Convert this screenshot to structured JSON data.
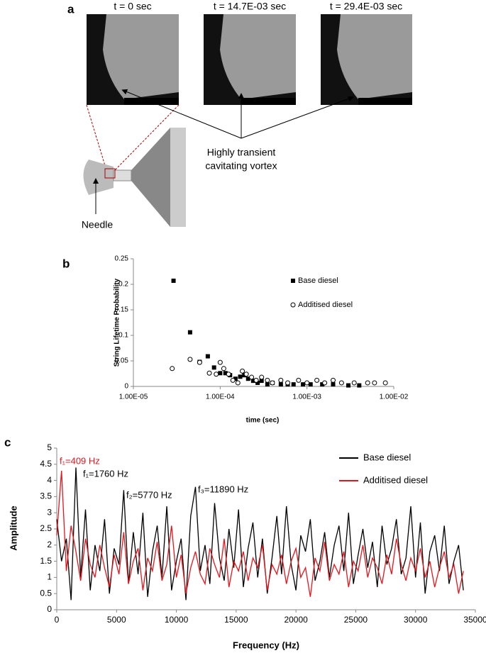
{
  "panel_a": {
    "label": "a",
    "frame_titles": [
      "t = 0 sec",
      "t = 14.7E-03 sec",
      "t = 29.4E-03 sec"
    ],
    "annotation_lines": [
      "Highly transient",
      "cavitating vortex"
    ],
    "needle_label": "Needle"
  },
  "chart_data": [
    {
      "type": "scatter",
      "panel_label": "b",
      "y_label": "String Lifetime Probability",
      "x_label": "time (sec)",
      "xscale": "log",
      "xlim": [
        1e-05,
        0.01
      ],
      "xticks": [
        {
          "value": 1e-05,
          "label": "1.00E-05"
        },
        {
          "value": 0.0001,
          "label": "1.00E-04"
        },
        {
          "value": 0.001,
          "label": "1.00E-03"
        },
        {
          "value": 0.01,
          "label": "1.00E-02"
        }
      ],
      "ylim": [
        0,
        0.25
      ],
      "yticks": [
        0,
        0.05,
        0.1,
        0.15,
        0.2,
        0.25
      ],
      "series": [
        {
          "name": "Base diesel",
          "marker": "square",
          "color": "#000000",
          "x": [
            2.9e-05,
            4.5e-05,
            5.8e-05,
            7.2e-05,
            8.5e-05,
            0.0001,
            0.000115,
            0.00013,
            0.00015,
            0.00017,
            0.00019,
            0.00021,
            0.00024,
            0.00027,
            0.0003,
            0.00035,
            0.0004,
            0.0005,
            0.0006,
            0.0007,
            0.0009,
            0.0011,
            0.0015,
            0.002,
            0.003,
            0.004
          ],
          "values": [
            0.207,
            0.106,
            0.048,
            0.059,
            0.037,
            0.026,
            0.026,
            0.022,
            0.015,
            0.019,
            0.022,
            0.015,
            0.011,
            0.007,
            0.011,
            0.004,
            0.007,
            0.004,
            0.004,
            0.004,
            0.004,
            0.004,
            0.004,
            0.004,
            0.002,
            0.002
          ]
        },
        {
          "name": "Additised diesel",
          "marker": "circle",
          "color": "#000000",
          "x": [
            2.8e-05,
            4.5e-05,
            5.8e-05,
            7.5e-05,
            9e-05,
            0.0001,
            0.00011,
            0.000125,
            0.00014,
            0.00016,
            0.00018,
            0.0002,
            0.00023,
            0.00026,
            0.0003,
            0.00035,
            0.0004,
            0.0005,
            0.0006,
            0.0008,
            0.001,
            0.0013,
            0.0016,
            0.002,
            0.0025,
            0.0035,
            0.005,
            0.006,
            0.008
          ],
          "values": [
            0.035,
            0.053,
            0.047,
            0.026,
            0.024,
            0.047,
            0.035,
            0.024,
            0.012,
            0.007,
            0.03,
            0.024,
            0.018,
            0.012,
            0.018,
            0.012,
            0.007,
            0.012,
            0.007,
            0.012,
            0.007,
            0.012,
            0.007,
            0.012,
            0.007,
            0.007,
            0.007,
            0.007,
            0.007
          ]
        }
      ]
    },
    {
      "type": "line",
      "panel_label": "c",
      "y_label": "Amplitude",
      "x_label": "Frequency (Hz)",
      "xlim": [
        0,
        35000
      ],
      "xticks": [
        0,
        5000,
        10000,
        15000,
        20000,
        25000,
        30000,
        35000
      ],
      "ylim": [
        0,
        5
      ],
      "yticks": [
        0,
        0.5,
        1,
        1.5,
        2,
        2.5,
        3,
        3.5,
        4,
        4.5,
        5
      ],
      "x": [
        0,
        400,
        800,
        1200,
        1600,
        2000,
        2400,
        2800,
        3200,
        3600,
        4000,
        4400,
        4800,
        5200,
        5600,
        6000,
        6400,
        6800,
        7200,
        7600,
        8000,
        8400,
        8800,
        9200,
        9600,
        10000,
        10400,
        10800,
        11200,
        11600,
        12000,
        12400,
        12800,
        13200,
        13600,
        14000,
        14400,
        14800,
        15200,
        15600,
        16000,
        16400,
        16800,
        17200,
        17600,
        18000,
        18400,
        18800,
        19200,
        19600,
        20000,
        20400,
        20800,
        21200,
        21600,
        22000,
        22400,
        22800,
        23200,
        23600,
        24000,
        24400,
        24800,
        25200,
        25600,
        26000,
        26400,
        26800,
        27200,
        27600,
        28000,
        28400,
        28800,
        29200,
        29600,
        30000,
        30400,
        30800,
        31200,
        31600,
        32000,
        32400,
        32800,
        33200,
        33600,
        34000
      ],
      "series": [
        {
          "name": "Base diesel",
          "color": "#000000",
          "values": [
            2.8,
            1.5,
            2.2,
            0.3,
            4.4,
            1.0,
            3.1,
            0.6,
            2.0,
            1.2,
            2.8,
            0.5,
            1.9,
            1.4,
            3.7,
            0.8,
            2.4,
            1.1,
            3.0,
            0.4,
            1.8,
            2.6,
            1.0,
            3.2,
            0.6,
            1.5,
            2.2,
            0.3,
            2.9,
            3.8,
            1.2,
            2.0,
            0.8,
            3.3,
            1.6,
            0.9,
            2.5,
            1.3,
            3.1,
            0.7,
            1.9,
            2.7,
            1.0,
            2.2,
            0.5,
            1.6,
            2.9,
            1.1,
            3.2,
            1.4,
            0.6,
            2.3,
            1.8,
            2.8,
            0.9,
            1.5,
            2.4,
            1.0,
            2.0,
            2.6,
            1.2,
            3.0,
            0.8,
            1.7,
            2.5,
            1.3,
            2.1,
            0.7,
            2.6,
            1.4,
            1.9,
            2.8,
            1.1,
            1.6,
            3.2,
            1.0,
            2.7,
            0.5,
            1.8,
            2.3,
            1.2,
            2.6,
            0.8,
            1.5,
            2.0,
            0.6
          ]
        },
        {
          "name": "Additised diesel",
          "color": "#e8141b",
          "values": [
            2.3,
            4.3,
            1.2,
            2.6,
            1.8,
            0.9,
            2.2,
            1.4,
            1.0,
            2.0,
            1.3,
            0.7,
            1.7,
            1.1,
            2.4,
            0.8,
            1.5,
            1.9,
            0.6,
            1.6,
            1.2,
            2.1,
            0.9,
            1.4,
            2.6,
            1.0,
            1.7,
            0.5,
            1.3,
            1.8,
            1.1,
            0.8,
            1.9,
            1.4,
            1.0,
            2.2,
            0.7,
            1.5,
            1.2,
            1.8,
            0.9,
            1.6,
            1.3,
            2.0,
            0.6,
            1.4,
            1.1,
            1.7,
            0.8,
            1.5,
            1.9,
            1.0,
            1.3,
            0.4,
            1.6,
            1.2,
            2.1,
            0.9,
            1.4,
            1.1,
            1.8,
            0.7,
            1.5,
            1.2,
            2.0,
            1.0,
            1.6,
            1.3,
            0.8,
            1.7,
            1.1,
            2.2,
            1.4,
            0.9,
            1.6,
            1.2,
            1.9,
            1.0,
            1.5,
            0.7,
            1.3,
            1.8,
            1.0,
            1.4,
            0.5,
            1.2
          ]
        }
      ],
      "annotations": [
        {
          "text": "f₁=409 Hz",
          "color": "#e8141b"
        },
        {
          "text": "f₁=1760 Hz",
          "color": "#000000"
        },
        {
          "text": "f₂=5770 Hz",
          "color": "#000000"
        },
        {
          "text": "f₃=11890 Hz",
          "color": "#000000"
        }
      ]
    }
  ]
}
